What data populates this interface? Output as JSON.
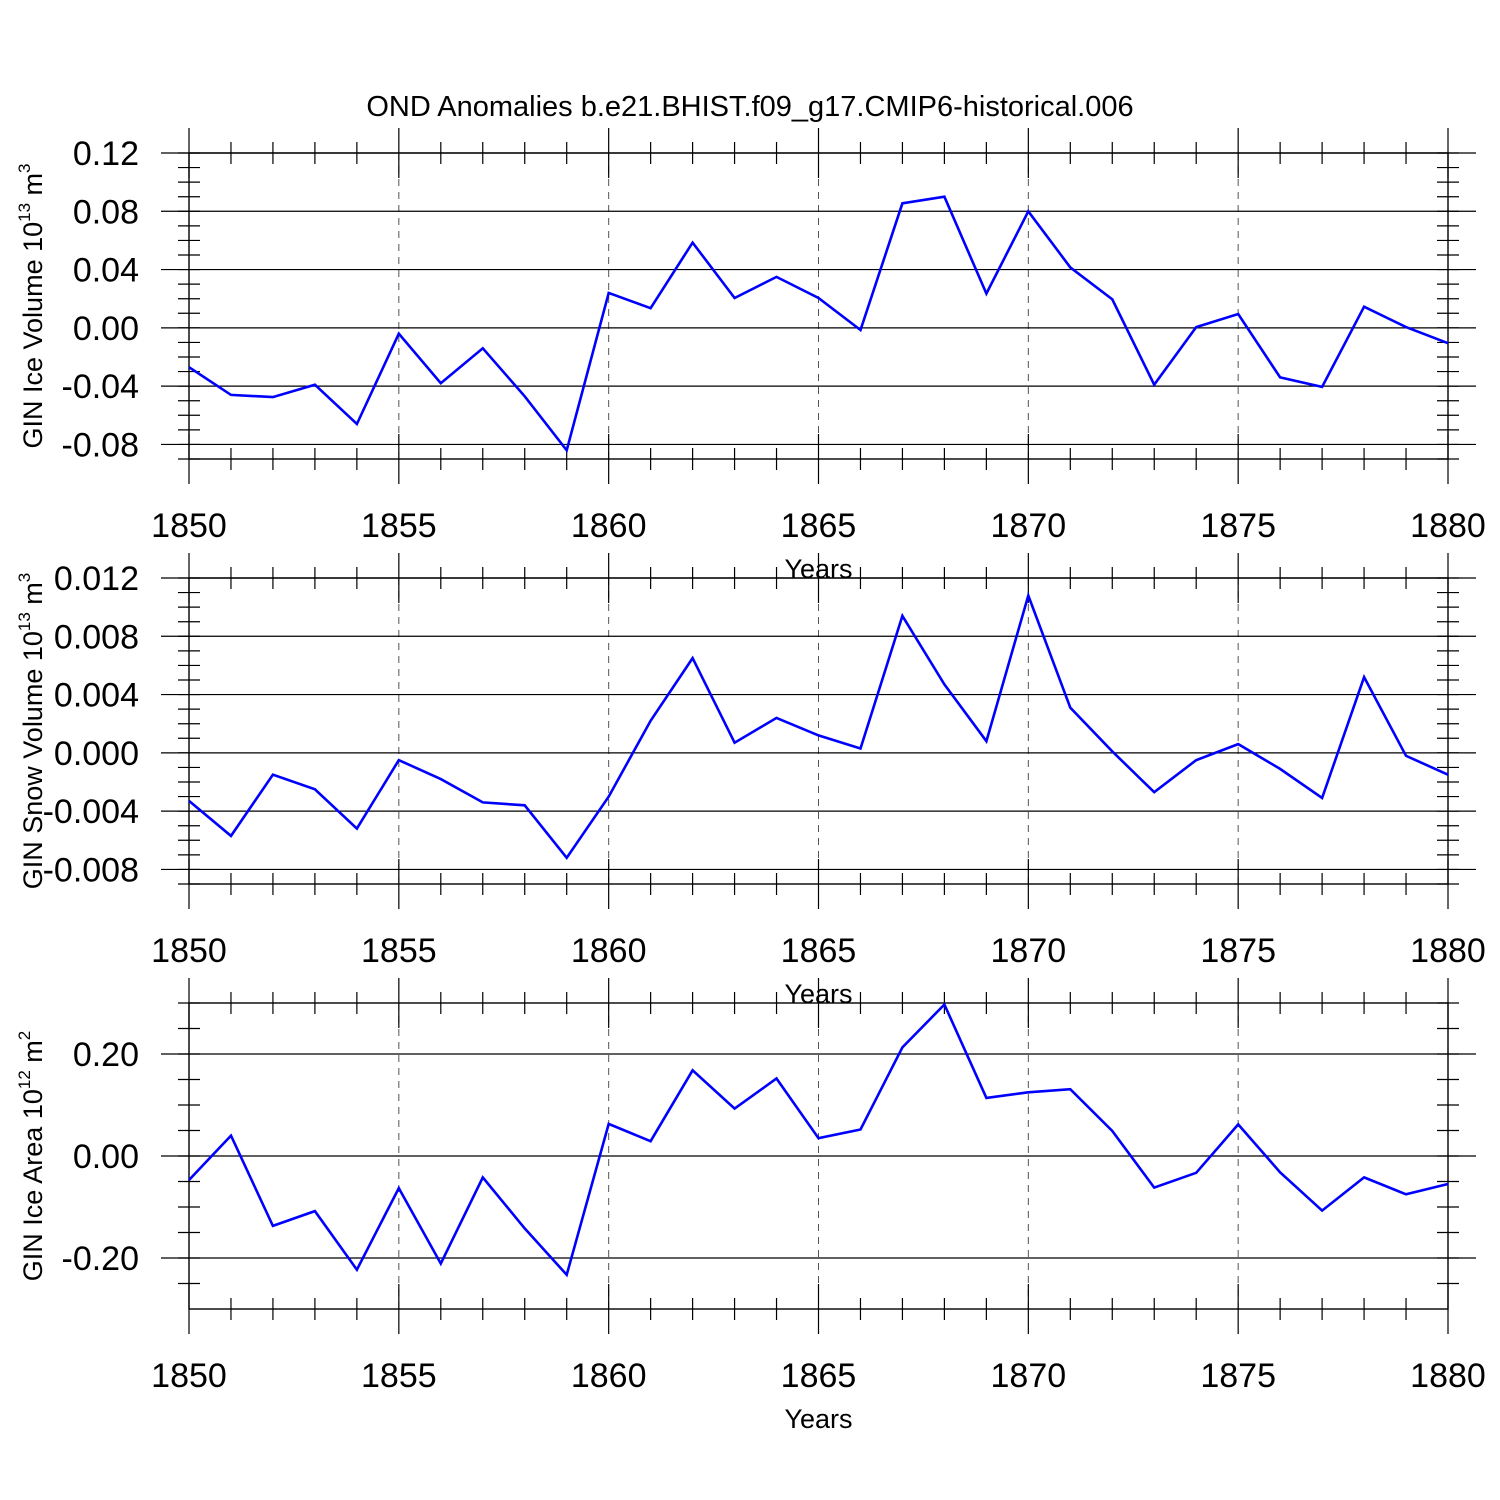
{
  "title": "OND Anomalies b.e21.BHIST.f09_g17.CMIP6-historical.006",
  "line_color": "#0000ff",
  "chart_data": [
    {
      "type": "line",
      "ylabel": "GIN Ice Volume 10",
      "ylabel_exp": "13",
      "ylabel_unit": " m",
      "ylabel_unit_exp": "3",
      "xlabel": "Years",
      "xlim": [
        1850,
        1880
      ],
      "ylim": [
        -0.09,
        0.12
      ],
      "xticks": [
        1850,
        1855,
        1860,
        1865,
        1870,
        1875,
        1880
      ],
      "yticks": [
        "0.12",
        "0.08",
        "0.04",
        "0.00",
        "-0.04",
        "-0.08"
      ],
      "ytick_values": [
        0.12,
        0.08,
        0.04,
        0.0,
        -0.04,
        -0.08
      ],
      "x": [
        1850,
        1851,
        1852,
        1853,
        1854,
        1855,
        1856,
        1857,
        1858,
        1859,
        1860,
        1861,
        1862,
        1863,
        1864,
        1865,
        1866,
        1867,
        1868,
        1869,
        1870,
        1871,
        1872,
        1873,
        1874,
        1875,
        1876,
        1877,
        1878,
        1879,
        1880
      ],
      "values": [
        -0.027,
        -0.046,
        -0.0475,
        -0.039,
        -0.066,
        -0.004,
        -0.038,
        -0.014,
        -0.047,
        -0.084,
        0.024,
        0.0135,
        0.0585,
        0.0205,
        0.035,
        0.0205,
        -0.0015,
        0.0855,
        0.09,
        0.0235,
        0.08,
        0.0415,
        0.0195,
        -0.039,
        0.0005,
        0.0095,
        -0.034,
        -0.0405,
        0.0145,
        0.0005,
        -0.0105
      ]
    },
    {
      "type": "line",
      "ylabel": "GIN Snow Volume 10",
      "ylabel_exp": "13",
      "ylabel_unit": " m",
      "ylabel_unit_exp": "3",
      "xlabel": "Years",
      "xlim": [
        1850,
        1880
      ],
      "ylim": [
        -0.009,
        0.012
      ],
      "xticks": [
        1850,
        1855,
        1860,
        1865,
        1870,
        1875,
        1880
      ],
      "yticks": [
        "0.012",
        "0.008",
        "0.004",
        "0.000",
        "-0.004",
        "-0.008"
      ],
      "ytick_values": [
        0.012,
        0.008,
        0.004,
        0.0,
        -0.004,
        -0.008
      ],
      "x": [
        1850,
        1851,
        1852,
        1853,
        1854,
        1855,
        1856,
        1857,
        1858,
        1859,
        1860,
        1861,
        1862,
        1863,
        1864,
        1865,
        1866,
        1867,
        1868,
        1869,
        1870,
        1871,
        1872,
        1873,
        1874,
        1875,
        1876,
        1877,
        1878,
        1879,
        1880
      ],
      "values": [
        -0.0033,
        -0.0057,
        -0.0015,
        -0.0025,
        -0.0052,
        -0.0005,
        -0.0018,
        -0.0034,
        -0.0036,
        -0.0072,
        -0.003,
        0.0022,
        0.0065,
        0.0007,
        0.0024,
        0.0012,
        0.0003,
        0.0094,
        0.0047,
        0.0008,
        0.0108,
        0.0031,
        0.0001,
        -0.0027,
        -0.0005,
        0.0006,
        -0.0011,
        -0.0031,
        0.0052,
        -0.0002,
        -0.0015
      ]
    },
    {
      "type": "line",
      "ylabel": "GIN Ice Area 10",
      "ylabel_exp": "12",
      "ylabel_unit": " m",
      "ylabel_unit_exp": "2",
      "xlabel": "Years",
      "xlim": [
        1850,
        1880
      ],
      "ylim": [
        -0.3,
        0.3
      ],
      "xticks": [
        1850,
        1855,
        1860,
        1865,
        1870,
        1875,
        1880
      ],
      "yticks": [
        "0.20",
        "0.00",
        "-0.20"
      ],
      "ytick_values": [
        0.2,
        0.0,
        -0.2
      ],
      "x": [
        1850,
        1851,
        1852,
        1853,
        1854,
        1855,
        1856,
        1857,
        1858,
        1859,
        1860,
        1861,
        1862,
        1863,
        1864,
        1865,
        1866,
        1867,
        1868,
        1869,
        1870,
        1871,
        1872,
        1873,
        1874,
        1875,
        1876,
        1877,
        1878,
        1879,
        1880
      ],
      "values": [
        -0.047,
        0.04,
        -0.137,
        -0.108,
        -0.223,
        -0.063,
        -0.211,
        -0.042,
        -0.142,
        -0.233,
        0.063,
        0.029,
        0.168,
        0.093,
        0.152,
        0.035,
        0.052,
        0.213,
        0.297,
        0.114,
        0.125,
        0.131,
        0.049,
        -0.062,
        -0.033,
        0.062,
        -0.032,
        -0.107,
        -0.042,
        -0.075,
        -0.055
      ]
    }
  ]
}
